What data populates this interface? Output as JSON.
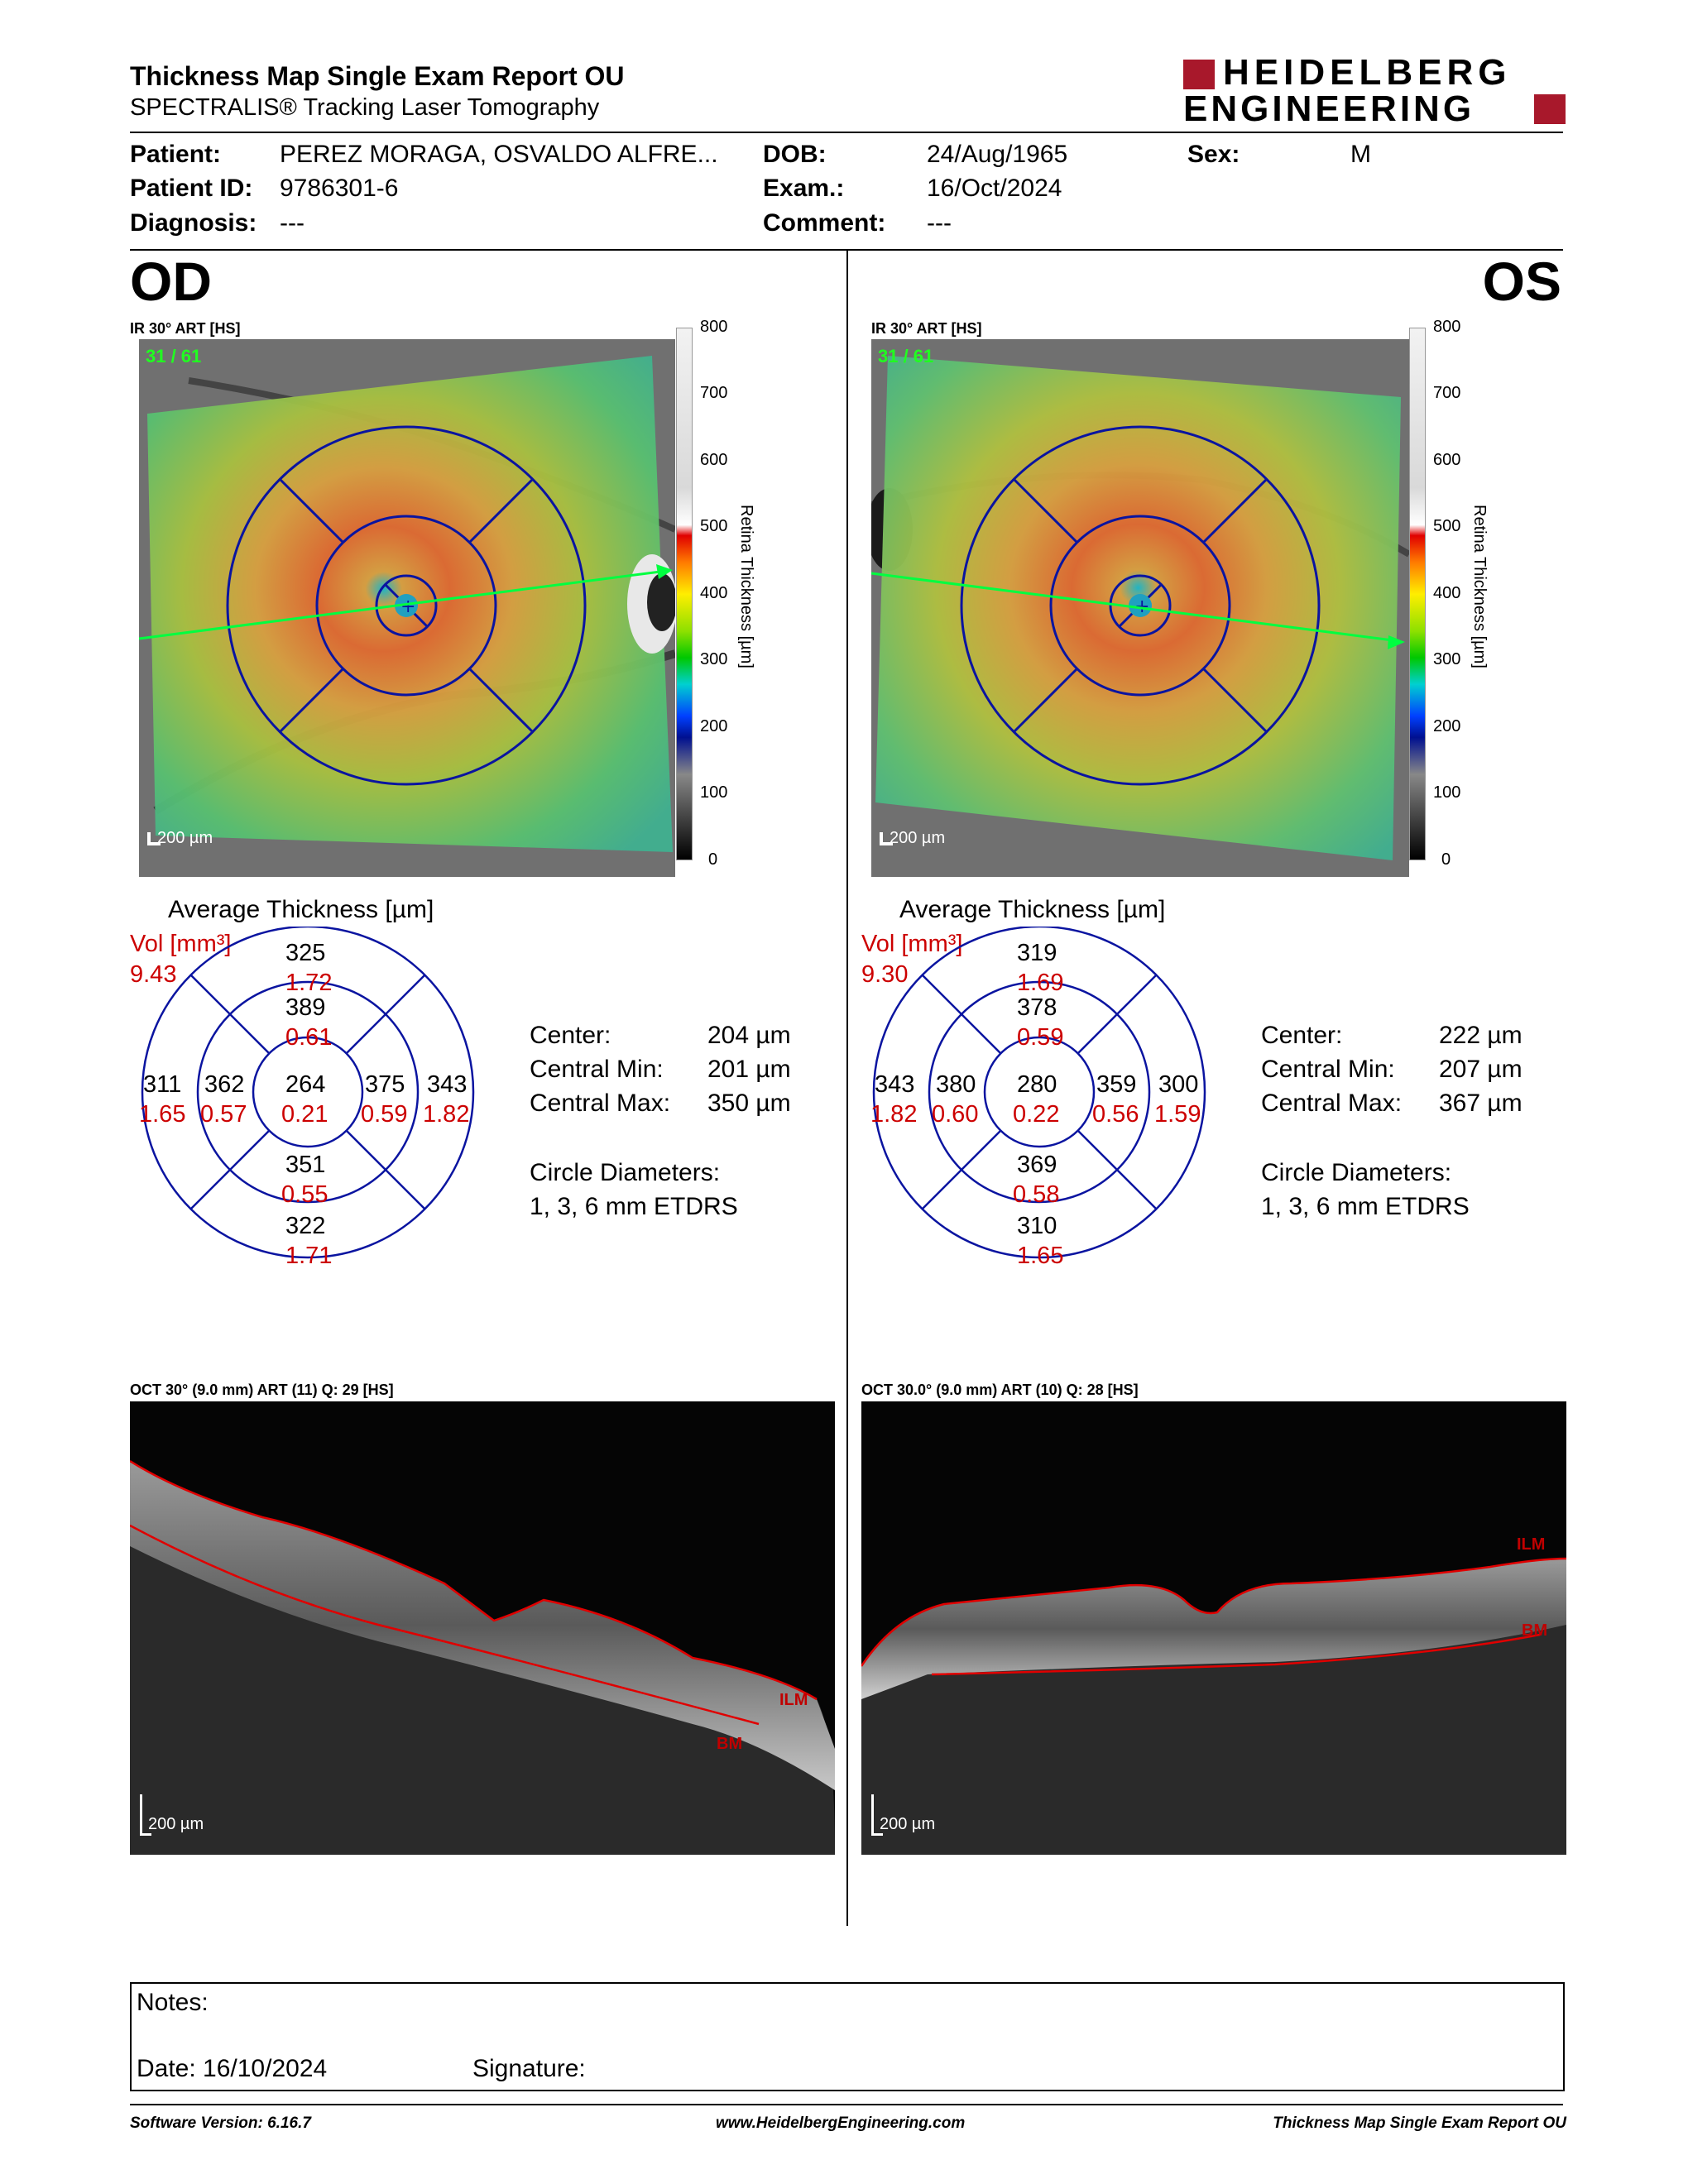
{
  "header": {
    "title": "Thickness Map Single Exam Report OU",
    "subtitle": "SPECTRALIS® Tracking Laser Tomography",
    "logo_line1": "HEIDELBERG",
    "logo_line2": "ENGINEERING"
  },
  "patient": {
    "patient_label": "Patient:",
    "patient_value": "PEREZ MORAGA, OSVALDO ALFRE...",
    "id_label": "Patient ID:",
    "id_value": "9786301-6",
    "diagnosis_label": "Diagnosis:",
    "diagnosis_value": "---",
    "dob_label": "DOB:",
    "dob_value": "24/Aug/1965",
    "exam_label": "Exam.:",
    "exam_value": "16/Oct/2024",
    "comment_label": "Comment:",
    "comment_value": "---",
    "sex_label": "Sex:",
    "sex_value": "M"
  },
  "colorbar": {
    "title": "Retina Thickness [µm]",
    "ticks": [
      "800",
      "700",
      "600",
      "500",
      "400",
      "300",
      "200",
      "100",
      "0"
    ]
  },
  "od": {
    "eye": "OD",
    "ir_label": "IR 30° ART [HS]",
    "frame": "31 / 61",
    "scale": "200 µm",
    "avg_title": "Average Thickness [µm]",
    "vol_label": "Vol [mm³]",
    "vol_value": "9.43",
    "sectors": {
      "outer_sup": "325",
      "outer_sup_vol": "1.72",
      "inner_sup": "389",
      "inner_sup_vol": "0.61",
      "outer_left": "311",
      "outer_left_vol": "1.65",
      "inner_left": "362",
      "inner_left_vol": "0.57",
      "center": "264",
      "center_vol": "0.21",
      "inner_right": "375",
      "inner_right_vol": "0.59",
      "outer_right": "343",
      "outer_right_vol": "1.82",
      "inner_inf": "351",
      "inner_inf_vol": "0.55",
      "outer_inf": "322",
      "outer_inf_vol": "1.71"
    },
    "stats": {
      "center_label": "Center:",
      "center_value": "204 µm",
      "min_label": "Central Min:",
      "min_value": "201 µm",
      "max_label": "Central Max:",
      "max_value": "350 µm",
      "diam_label": "Circle Diameters:",
      "diam_value": "1, 3, 6 mm ETDRS"
    },
    "oct_label": "OCT 30° (9.0 mm) ART (11) Q: 29 [HS]",
    "oct_scale": "200 µm",
    "ilm": "ILM",
    "bm": "BM"
  },
  "os": {
    "eye": "OS",
    "ir_label": "IR 30° ART [HS]",
    "frame": "31 / 61",
    "scale": "200 µm",
    "avg_title": "Average Thickness [µm]",
    "vol_label": "Vol [mm³]",
    "vol_value": "9.30",
    "sectors": {
      "outer_sup": "319",
      "outer_sup_vol": "1.69",
      "inner_sup": "378",
      "inner_sup_vol": "0.59",
      "outer_left": "343",
      "outer_left_vol": "1.82",
      "inner_left": "380",
      "inner_left_vol": "0.60",
      "center": "280",
      "center_vol": "0.22",
      "inner_right": "359",
      "inner_right_vol": "0.56",
      "outer_right": "300",
      "outer_right_vol": "1.59",
      "inner_inf": "369",
      "inner_inf_vol": "0.58",
      "outer_inf": "310",
      "outer_inf_vol": "1.65"
    },
    "stats": {
      "center_label": "Center:",
      "center_value": "222 µm",
      "min_label": "Central Min:",
      "min_value": "207 µm",
      "max_label": "Central Max:",
      "max_value": "367 µm",
      "diam_label": "Circle Diameters:",
      "diam_value": "1, 3, 6 mm ETDRS"
    },
    "oct_label": "OCT 30.0° (9.0 mm) ART (10) Q: 28 [HS]",
    "oct_scale": "200 µm",
    "ilm": "ILM",
    "bm": "BM"
  },
  "notes": {
    "notes_label": "Notes:",
    "date_label": "Date: 16/10/2024",
    "signature_label": "Signature:"
  },
  "footer": {
    "software": "Software Version: 6.16.7",
    "website": "www.HeidelbergEngineering.com",
    "report": "Thickness Map Single Exam Report OU"
  }
}
